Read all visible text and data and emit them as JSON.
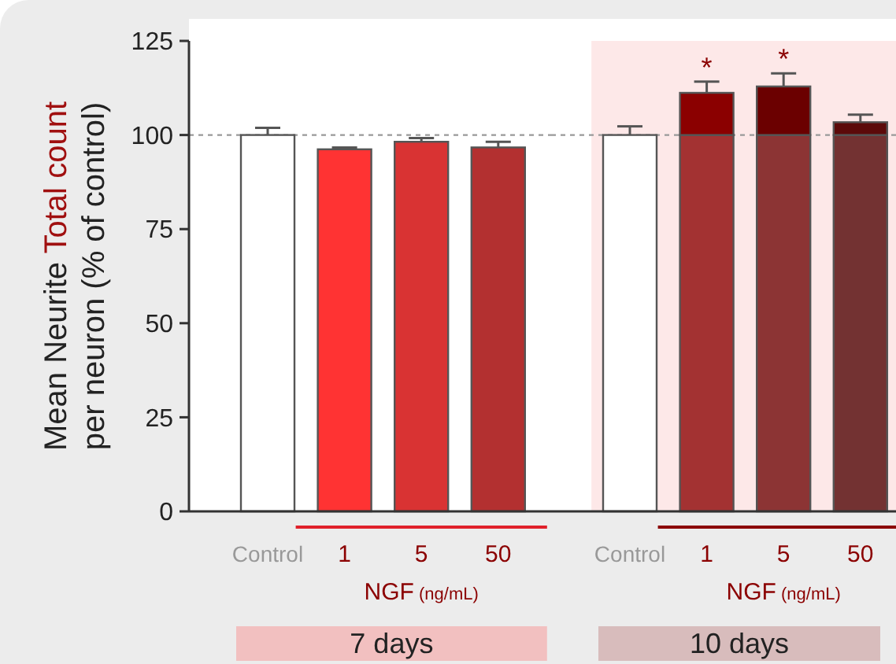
{
  "chart_data": [
    {
      "type": "bar",
      "ylabel": "Mean Neurite Total count per neuron (% of control)",
      "categories": [
        "Control",
        "1",
        "5",
        "50"
      ],
      "series": [
        {
          "colors": [
            "#ffffff",
            "#ff3333",
            "#d93333",
            "#b33030"
          ],
          "values": [
            100,
            96.2,
            98.2,
            96.7
          ],
          "errors": [
            1.9,
            0.5,
            1,
            1.5
          ]
        }
      ],
      "ylim": [
        0,
        125
      ],
      "yticks": [
        0,
        25,
        50,
        75,
        100,
        125
      ],
      "ref_lines": [
        {
          "axis": "y",
          "value": 100,
          "color": "#999999",
          "line_style": "dotted"
        }
      ],
      "annotations": [
        "NGF (ng/mL)",
        "7 days"
      ]
    },
    {
      "type": "bar",
      "stacked": true,
      "categories": [
        "Control",
        "1",
        "5",
        "50"
      ],
      "series": [
        {
          "colors": [
            "#ffffff",
            "#a33232",
            "#8c3434",
            "#733232"
          ],
          "values": [
            100,
            100,
            100,
            100
          ],
          "errors": [
            2.3,
            null,
            null,
            null
          ]
        },
        {
          "colors": [
            null,
            "#8b0000",
            "#6b0000",
            "#5c0a0a"
          ],
          "values": [
            null,
            11.2,
            12.9,
            3.4
          ],
          "errors": [
            null,
            3,
            3.5,
            2
          ]
        }
      ],
      "ylim": [
        0,
        125
      ],
      "tick_labels": "x",
      "ref_lines": [
        {
          "axis": "y",
          "value": 100,
          "color": "#999999",
          "line_style": "dotted"
        }
      ],
      "bands": [
        {
          "axis": "x",
          "from": "Control",
          "to": "50",
          "color": "#fde8e8"
        }
      ],
      "annotations": [
        "*",
        "*",
        "NGF (ng/mL)",
        "10 days"
      ]
    }
  ]
}
